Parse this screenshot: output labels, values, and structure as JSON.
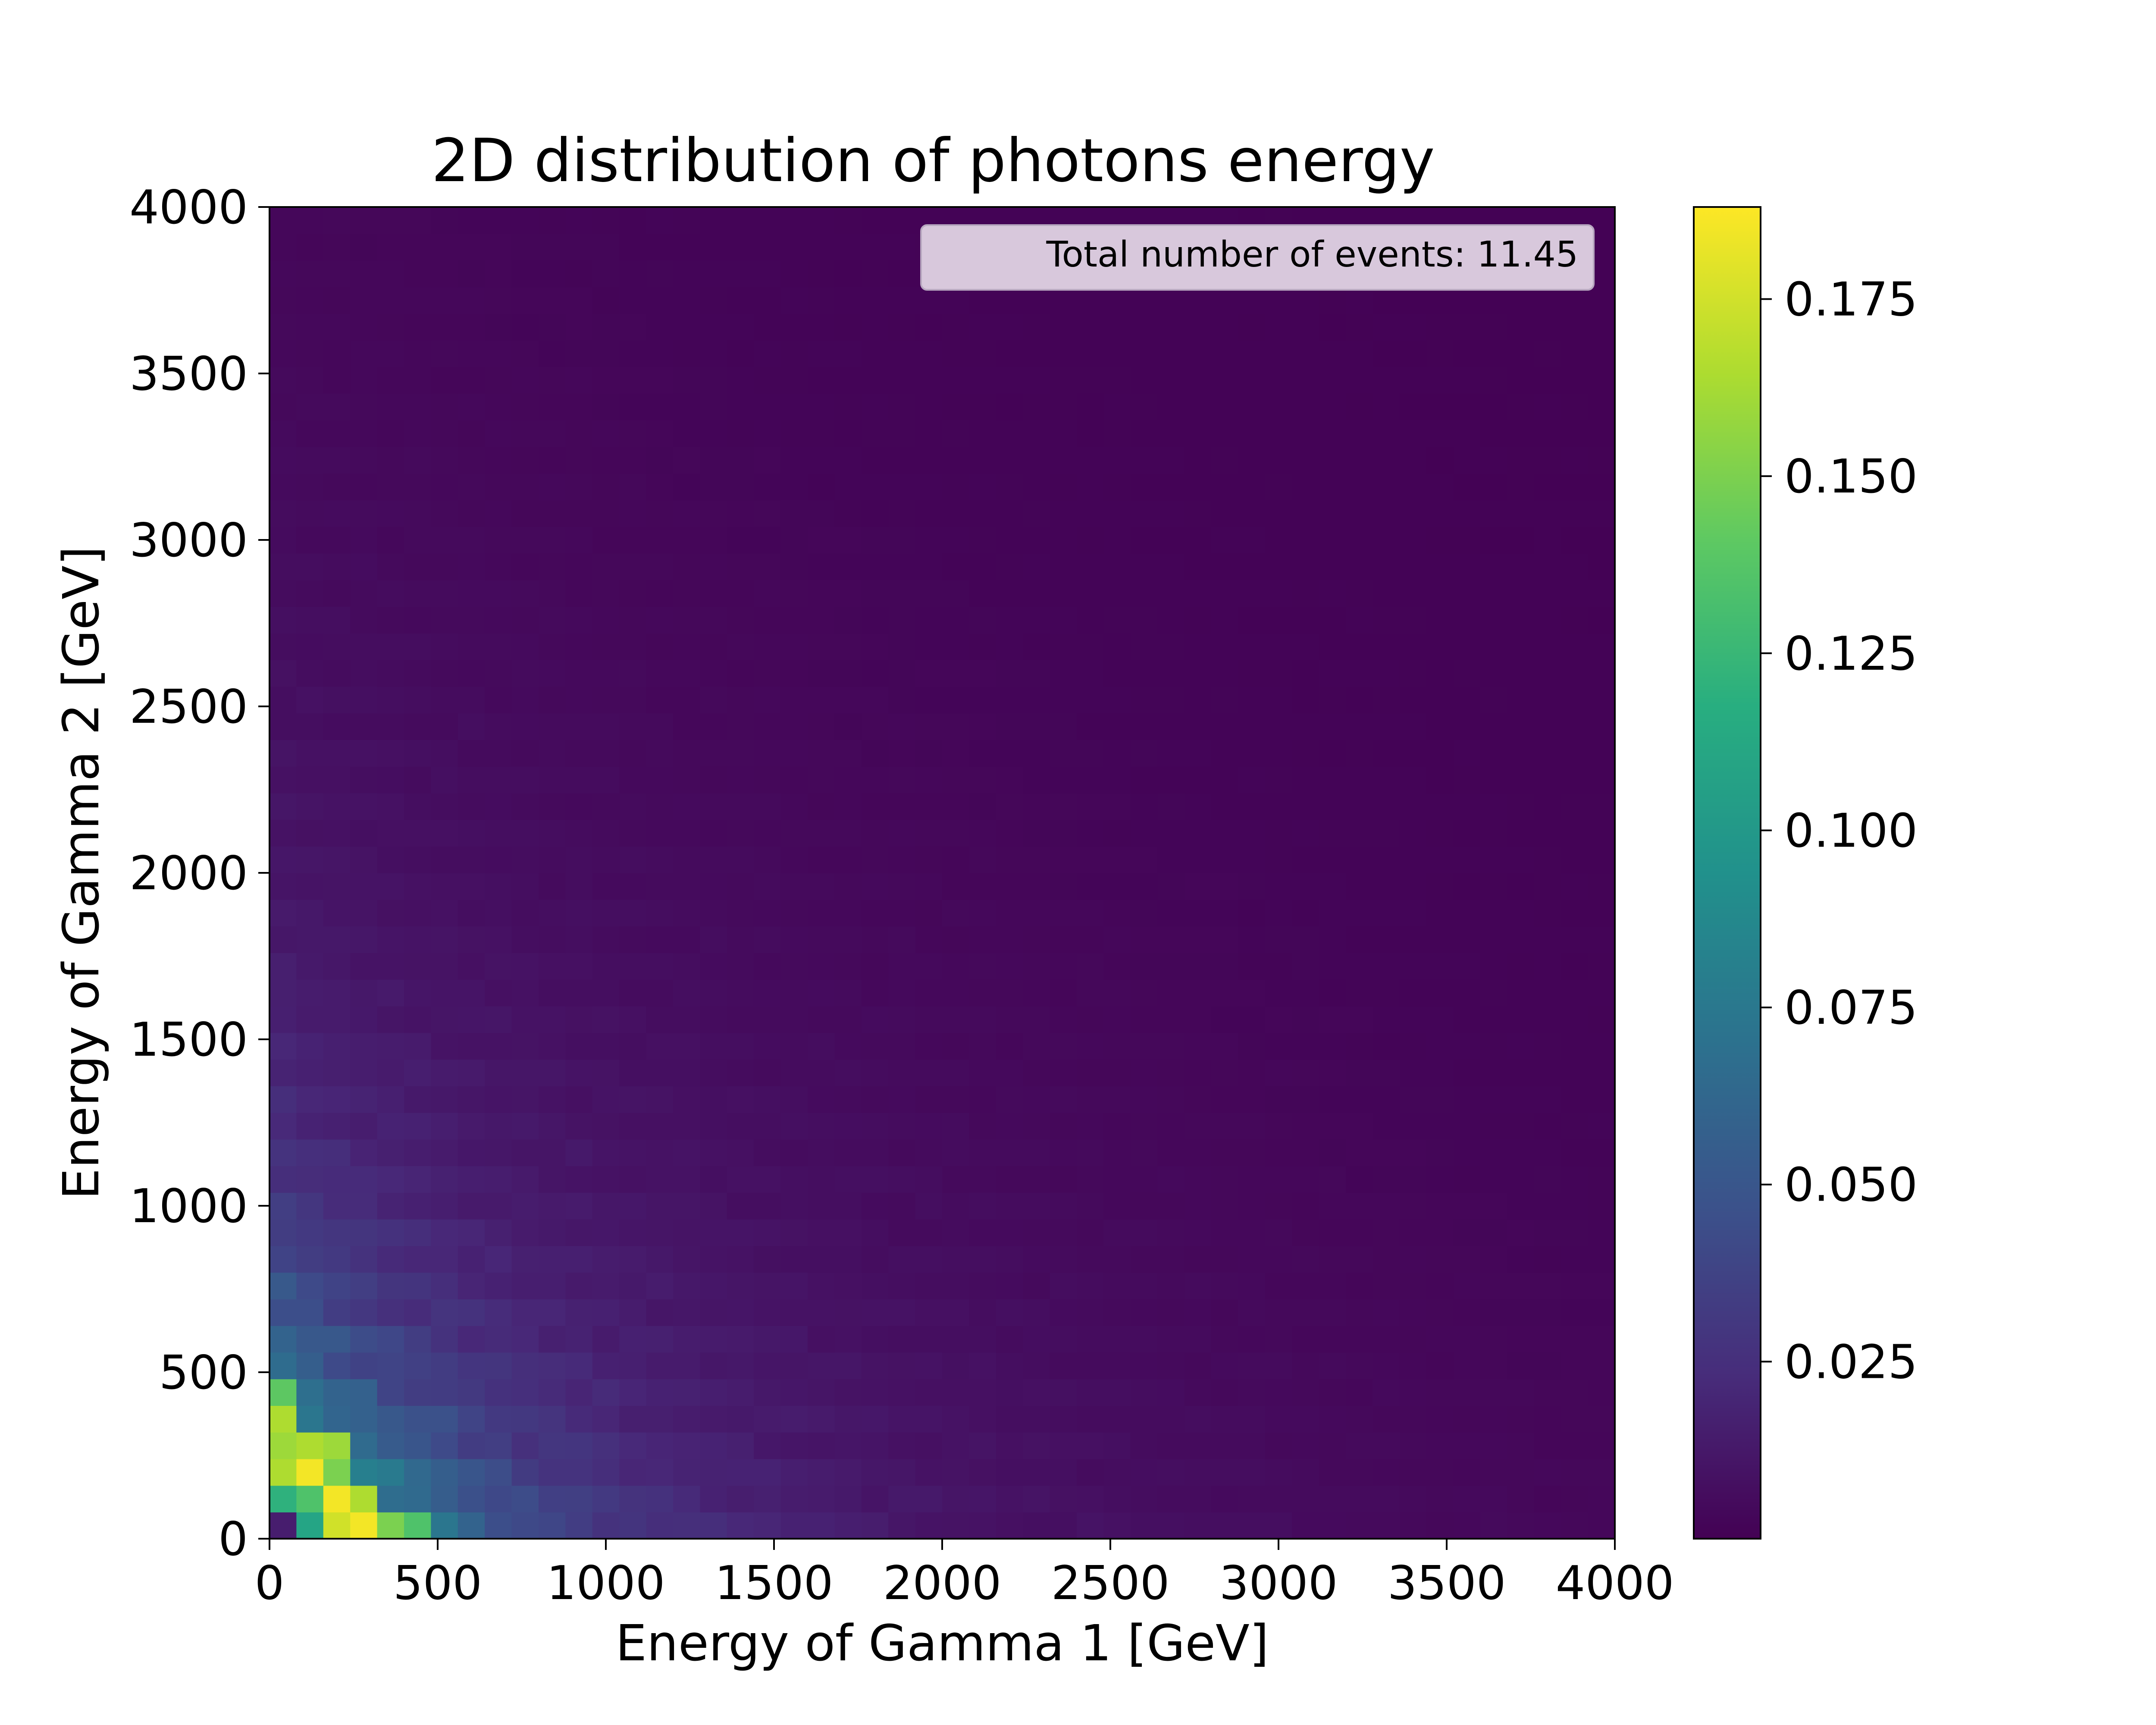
{
  "chart_data": {
    "type": "heatmap",
    "title": "2D distribution of photons energy",
    "xlabel": "Energy of Gamma 1 [GeV]",
    "ylabel": "Energy of Gamma 2 [GeV]",
    "xlim": [
      0,
      4000
    ],
    "ylim": [
      0,
      4000
    ],
    "xticks": [
      0,
      500,
      1000,
      1500,
      2000,
      2500,
      3000,
      3500,
      4000
    ],
    "yticks": [
      0,
      500,
      1000,
      1500,
      2000,
      2500,
      3000,
      3500,
      4000
    ],
    "bins": 50,
    "bin_width": 80,
    "colormap": "viridis",
    "colorbar": {
      "range": [
        0,
        0.188
      ],
      "ticks": [
        0.025,
        0.05,
        0.075,
        0.1,
        0.125,
        0.15,
        0.175
      ],
      "tick_labels": [
        "0.025",
        "0.050",
        "0.075",
        "0.100",
        "0.125",
        "0.150",
        "0.175"
      ]
    },
    "annotation": {
      "text": "Total number of events: 11.45",
      "placement": "top-right",
      "box_color": "#d8c8dc"
    },
    "grid": false,
    "notable_cells": [
      {
        "x": [
          0,
          80
        ],
        "y": [
          0,
          80
        ],
        "value": 0.015
      },
      {
        "x": [
          80,
          160
        ],
        "y": [
          0,
          80
        ],
        "value": 0.11
      },
      {
        "x": [
          160,
          240
        ],
        "y": [
          0,
          80
        ],
        "value": 0.175
      },
      {
        "x": [
          240,
          320
        ],
        "y": [
          0,
          80
        ],
        "value": 0.185
      },
      {
        "x": [
          320,
          400
        ],
        "y": [
          0,
          80
        ],
        "value": 0.15
      },
      {
        "x": [
          400,
          480
        ],
        "y": [
          0,
          80
        ],
        "value": 0.135
      },
      {
        "x": [
          0,
          80
        ],
        "y": [
          80,
          160
        ],
        "value": 0.12
      },
      {
        "x": [
          80,
          160
        ],
        "y": [
          80,
          160
        ],
        "value": 0.135
      },
      {
        "x": [
          160,
          240
        ],
        "y": [
          80,
          160
        ],
        "value": 0.185
      },
      {
        "x": [
          240,
          320
        ],
        "y": [
          80,
          160
        ],
        "value": 0.165
      },
      {
        "x": [
          0,
          80
        ],
        "y": [
          160,
          240
        ],
        "value": 0.165
      },
      {
        "x": [
          80,
          160
        ],
        "y": [
          160,
          240
        ],
        "value": 0.185
      },
      {
        "x": [
          160,
          240
        ],
        "y": [
          160,
          240
        ],
        "value": 0.15
      },
      {
        "x": [
          0,
          80
        ],
        "y": [
          240,
          320
        ],
        "value": 0.16
      },
      {
        "x": [
          80,
          160
        ],
        "y": [
          240,
          320
        ],
        "value": 0.165
      },
      {
        "x": [
          160,
          240
        ],
        "y": [
          240,
          320
        ],
        "value": 0.16
      },
      {
        "x": [
          0,
          80
        ],
        "y": [
          320,
          400
        ],
        "value": 0.165
      },
      {
        "x": [
          0,
          80
        ],
        "y": [
          400,
          480
        ],
        "value": 0.14
      }
    ]
  },
  "colors": {
    "background": "#ffffff",
    "axes_edge": "#000000",
    "annotation_box": "#d8c8dc",
    "annotation_box_edge": "#b8a8c0"
  }
}
